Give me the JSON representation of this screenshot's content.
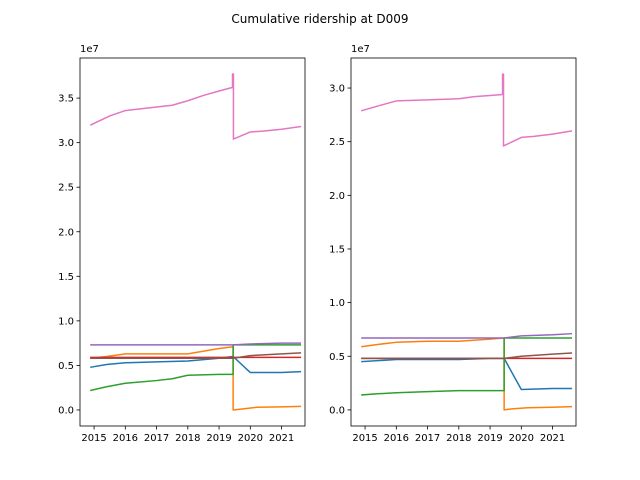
{
  "figure": {
    "title": "Cumulative ridership at D009"
  },
  "chart_data": [
    {
      "type": "line",
      "title": "",
      "xlabel": "",
      "ylabel": "",
      "y_offset_label": "1e7",
      "xlim": [
        2014.55,
        2021.75
      ],
      "ylim": [
        -0.18,
        3.95
      ],
      "xticks": [
        2015,
        2016,
        2017,
        2018,
        2019,
        2020,
        2021
      ],
      "xtick_labels": [
        "2015",
        "2016",
        "2017",
        "2018",
        "2019",
        "2020",
        "2021"
      ],
      "yticks": [
        0.0,
        0.5,
        1.0,
        1.5,
        2.0,
        2.5,
        3.0,
        3.5
      ],
      "ytick_labels": [
        "0.0",
        "0.5",
        "1.0",
        "1.5",
        "2.0",
        "2.5",
        "3.0",
        "3.5"
      ],
      "grid": false,
      "series": [
        {
          "color": "#1f77b4",
          "x": [
            2014.9,
            2015.4,
            2016.0,
            2017.0,
            2018.0,
            2019.0,
            2019.45,
            2020.0,
            2021.0,
            2021.6
          ],
          "y": [
            0.48,
            0.51,
            0.53,
            0.54,
            0.55,
            0.58,
            0.6,
            0.42,
            0.42,
            0.43
          ]
        },
        {
          "color": "#ff7f0e",
          "x": [
            2014.9,
            2015.4,
            2016.0,
            2017.0,
            2018.0,
            2019.0,
            2019.45,
            2019.45,
            2019.7,
            2020.2,
            2021.0,
            2021.6
          ],
          "y": [
            0.58,
            0.6,
            0.63,
            0.63,
            0.63,
            0.69,
            0.71,
            0.0,
            0.01,
            0.03,
            0.035,
            0.04
          ]
        },
        {
          "color": "#2ca02c",
          "x": [
            2014.9,
            2015.4,
            2016.0,
            2017.0,
            2017.5,
            2018.0,
            2019.0,
            2019.45,
            2019.45,
            2020.0,
            2021.0,
            2021.6
          ],
          "y": [
            0.22,
            0.26,
            0.3,
            0.33,
            0.35,
            0.39,
            0.4,
            0.4,
            0.73,
            0.73,
            0.73,
            0.73
          ]
        },
        {
          "color": "#d62728",
          "x": [
            2014.9,
            2016.0,
            2017.0,
            2018.0,
            2019.0,
            2019.45,
            2020.0,
            2021.0,
            2021.6
          ],
          "y": [
            0.59,
            0.59,
            0.59,
            0.59,
            0.59,
            0.59,
            0.59,
            0.59,
            0.59
          ]
        },
        {
          "color": "#9467bd",
          "x": [
            2014.9,
            2016.0,
            2017.0,
            2018.0,
            2019.0,
            2019.45,
            2020.0,
            2021.0,
            2021.6
          ],
          "y": [
            0.73,
            0.73,
            0.73,
            0.73,
            0.73,
            0.73,
            0.74,
            0.75,
            0.75
          ]
        },
        {
          "color": "#8c564b",
          "x": [
            2014.9,
            2016.0,
            2017.0,
            2018.0,
            2019.0,
            2019.45,
            2020.0,
            2021.0,
            2021.6
          ],
          "y": [
            0.58,
            0.58,
            0.58,
            0.58,
            0.58,
            0.58,
            0.61,
            0.63,
            0.64
          ]
        },
        {
          "color": "#e377c2",
          "x": [
            2014.9,
            2015.5,
            2016.0,
            2017.0,
            2017.5,
            2018.0,
            2018.5,
            2019.0,
            2019.43,
            2019.43,
            2019.46,
            2019.46,
            2020.0,
            2020.4,
            2021.0,
            2021.6
          ],
          "y": [
            3.2,
            3.3,
            3.36,
            3.4,
            3.42,
            3.47,
            3.53,
            3.58,
            3.62,
            3.77,
            3.77,
            3.04,
            3.12,
            3.13,
            3.15,
            3.18
          ]
        }
      ]
    },
    {
      "type": "line",
      "title": "",
      "xlabel": "",
      "ylabel": "",
      "y_offset_label": "1e7",
      "xlim": [
        2014.55,
        2021.75
      ],
      "ylim": [
        -0.15,
        3.28
      ],
      "xticks": [
        2015,
        2016,
        2017,
        2018,
        2019,
        2020,
        2021
      ],
      "xtick_labels": [
        "2015",
        "2016",
        "2017",
        "2018",
        "2019",
        "2020",
        "2021"
      ],
      "yticks": [
        0.0,
        0.5,
        1.0,
        1.5,
        2.0,
        2.5,
        3.0
      ],
      "ytick_labels": [
        "0.0",
        "0.5",
        "1.0",
        "1.5",
        "2.0",
        "2.5",
        "3.0"
      ],
      "grid": false,
      "series": [
        {
          "color": "#1f77b4",
          "x": [
            2014.9,
            2016.0,
            2017.0,
            2018.0,
            2019.0,
            2019.45,
            2020.0,
            2021.0,
            2021.6
          ],
          "y": [
            0.45,
            0.47,
            0.47,
            0.47,
            0.48,
            0.48,
            0.19,
            0.2,
            0.2
          ]
        },
        {
          "color": "#ff7f0e",
          "x": [
            2014.9,
            2015.4,
            2016.0,
            2017.0,
            2018.0,
            2019.0,
            2019.45,
            2019.45,
            2019.7,
            2020.2,
            2021.0,
            2021.6
          ],
          "y": [
            0.59,
            0.61,
            0.63,
            0.64,
            0.64,
            0.66,
            0.67,
            0.0,
            0.01,
            0.02,
            0.025,
            0.03
          ]
        },
        {
          "color": "#2ca02c",
          "x": [
            2014.9,
            2015.4,
            2016.0,
            2017.0,
            2018.0,
            2019.0,
            2019.45,
            2019.45,
            2020.0,
            2021.0,
            2021.6
          ],
          "y": [
            0.14,
            0.15,
            0.16,
            0.17,
            0.18,
            0.18,
            0.18,
            0.67,
            0.67,
            0.67,
            0.67
          ]
        },
        {
          "color": "#d62728",
          "x": [
            2014.9,
            2016.0,
            2017.0,
            2018.0,
            2019.0,
            2019.45,
            2020.0,
            2021.0,
            2021.6
          ],
          "y": [
            0.48,
            0.48,
            0.48,
            0.48,
            0.48,
            0.48,
            0.48,
            0.48,
            0.48
          ]
        },
        {
          "color": "#9467bd",
          "x": [
            2014.9,
            2016.0,
            2017.0,
            2018.0,
            2019.0,
            2019.45,
            2020.0,
            2021.0,
            2021.6
          ],
          "y": [
            0.67,
            0.67,
            0.67,
            0.67,
            0.67,
            0.67,
            0.69,
            0.7,
            0.71
          ]
        },
        {
          "color": "#8c564b",
          "x": [
            2014.9,
            2016.0,
            2017.0,
            2018.0,
            2019.0,
            2019.45,
            2020.0,
            2021.0,
            2021.6
          ],
          "y": [
            0.48,
            0.48,
            0.48,
            0.48,
            0.48,
            0.48,
            0.5,
            0.52,
            0.53
          ]
        },
        {
          "color": "#e377c2",
          "x": [
            2014.9,
            2015.5,
            2016.0,
            2017.0,
            2018.0,
            2018.5,
            2019.0,
            2019.4,
            2019.4,
            2019.43,
            2019.43,
            2020.0,
            2020.4,
            2021.0,
            2021.6
          ],
          "y": [
            2.79,
            2.84,
            2.88,
            2.89,
            2.9,
            2.92,
            2.93,
            2.94,
            3.13,
            3.13,
            2.46,
            2.54,
            2.55,
            2.57,
            2.6
          ]
        }
      ]
    }
  ]
}
